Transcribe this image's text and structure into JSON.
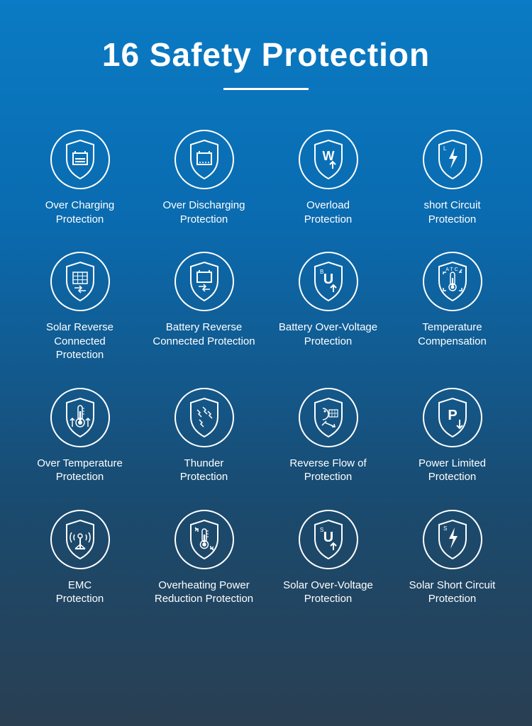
{
  "title": "16 Safety Protection",
  "styling": {
    "bg_gradient_top": "#0a7bc4",
    "bg_gradient_mid1": "#0a6bb0",
    "bg_gradient_mid2": "#1a4a6e",
    "bg_gradient_bottom": "#2a3f52",
    "text_color": "#ffffff",
    "stroke_color": "#ffffff",
    "circle_stroke_width": 2,
    "shield_stroke_width": 2,
    "icon_circle_diameter": 86,
    "title_fontsize": 46,
    "label_fontsize": 15,
    "underline_width": 120,
    "columns": 4,
    "rows": 4
  },
  "items": [
    {
      "label": "Over Charging\nProtection",
      "icon_name": "overcharging-icon"
    },
    {
      "label": "Over Discharging\nProtection",
      "icon_name": "overdischarging-icon"
    },
    {
      "label": "Overload\nProtection",
      "icon_name": "overload-icon"
    },
    {
      "label": "short Circuit\nProtection",
      "icon_name": "short-circuit-icon"
    },
    {
      "label": "Solar Reverse Connected\nProtection",
      "icon_name": "solar-reverse-icon"
    },
    {
      "label": "Battery Reverse\nConnected Protection",
      "icon_name": "battery-reverse-icon"
    },
    {
      "label": "Battery Over-Voltage\nProtection",
      "icon_name": "battery-ov-icon"
    },
    {
      "label": "Temperature\nCompensation",
      "icon_name": "temp-comp-icon"
    },
    {
      "label": "Over Temperature\nProtection",
      "icon_name": "over-temp-icon"
    },
    {
      "label": "Thunder\nProtection",
      "icon_name": "thunder-icon"
    },
    {
      "label": "Reverse Flow of\nProtection",
      "icon_name": "reverse-flow-icon"
    },
    {
      "label": "Power Limited\nProtection",
      "icon_name": "power-limited-icon"
    },
    {
      "label": "EMC\nProtection",
      "icon_name": "emc-icon"
    },
    {
      "label": "Overheating Power\nReduction Protection",
      "icon_name": "overheat-power-icon"
    },
    {
      "label": "Solar Over-Voltage\nProtection",
      "icon_name": "solar-ov-icon"
    },
    {
      "label": "Solar Short Circuit\nProtection",
      "icon_name": "solar-short-icon"
    }
  ]
}
